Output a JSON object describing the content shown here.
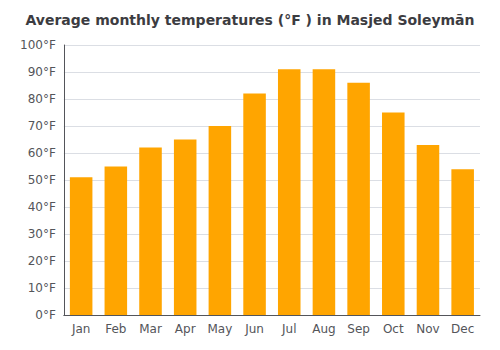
{
  "chart_data": {
    "type": "bar",
    "title": "Average monthly temperatures (°F ) in Masjed Soleymān",
    "categories": [
      "Jan",
      "Feb",
      "Mar",
      "Apr",
      "May",
      "Jun",
      "Jul",
      "Aug",
      "Sep",
      "Oct",
      "Nov",
      "Dec"
    ],
    "values": [
      51,
      55,
      62,
      65,
      70,
      82,
      91,
      91,
      86,
      75,
      63,
      54
    ],
    "color": "#FFA500",
    "ylim": [
      0,
      100
    ],
    "yticks": [
      {
        "value": 0,
        "label": "0°F"
      },
      {
        "value": 10,
        "label": "10°F"
      },
      {
        "value": 20,
        "label": "20°F"
      },
      {
        "value": 30,
        "label": "30°F"
      },
      {
        "value": 40,
        "label": "40°F"
      },
      {
        "value": 50,
        "label": "50°F"
      },
      {
        "value": 60,
        "label": "60°F"
      },
      {
        "value": 70,
        "label": "70°F"
      },
      {
        "value": 80,
        "label": "80°F"
      },
      {
        "value": 90,
        "label": "90°F"
      },
      {
        "value": 100,
        "label": "100°F"
      }
    ],
    "grid": true
  }
}
